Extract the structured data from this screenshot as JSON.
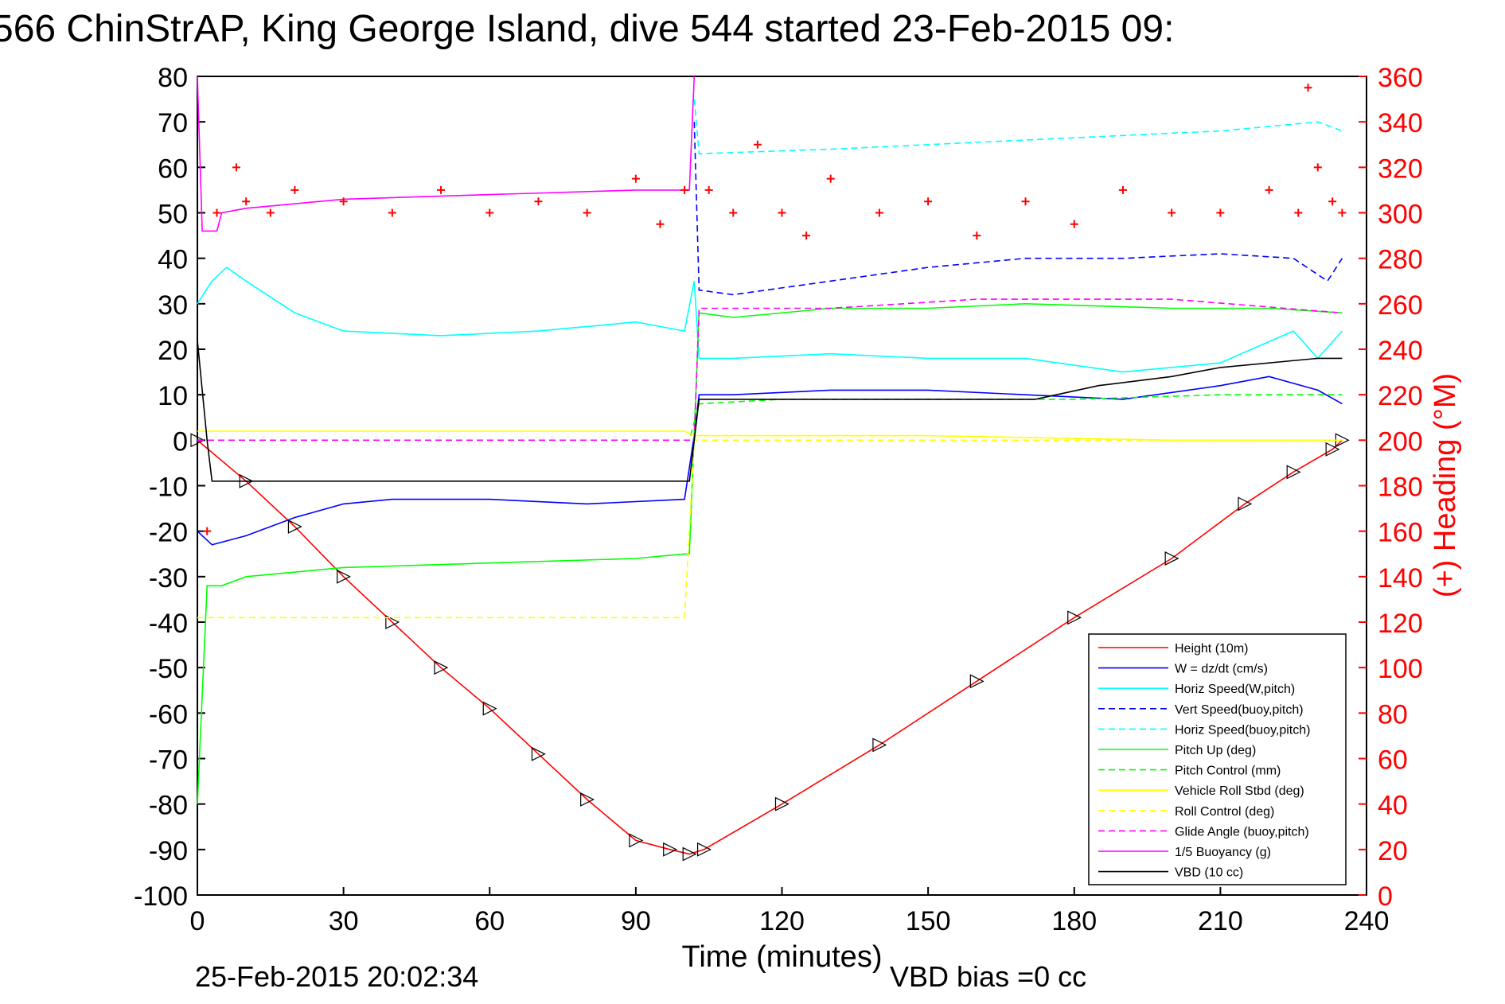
{
  "figure": {
    "title": "566 ChinStrAP, King George Island, dive 544 started 23-Feb-2015 09:",
    "footer_date": "25-Feb-2015 20:02:34",
    "footer_bias": "VBD bias =0 cc"
  },
  "chart_data": {
    "type": "line",
    "title": "566 ChinStrAP, King George Island, dive 544 started 23-Feb-2015 09:",
    "xlabel": "Time (minutes)",
    "ylabel": "",
    "y2label": "(+) Heading (°M)",
    "xlim": [
      0,
      240
    ],
    "ylim": [
      -100,
      80
    ],
    "y2lim": [
      0,
      360
    ],
    "xticks": [
      0,
      30,
      60,
      90,
      120,
      150,
      180,
      210,
      240
    ],
    "yticks": [
      -100,
      -90,
      -80,
      -70,
      -60,
      -50,
      -40,
      -30,
      -20,
      -10,
      0,
      10,
      20,
      30,
      40,
      50,
      60,
      70,
      80
    ],
    "y2ticks": [
      0,
      20,
      40,
      60,
      80,
      100,
      120,
      140,
      160,
      180,
      200,
      220,
      240,
      260,
      280,
      300,
      320,
      340,
      360
    ],
    "grid": false,
    "legend_position": "bottom-right",
    "series": [
      {
        "name": "Height (10m)",
        "color": "#ff0000",
        "style": "solid",
        "markers": "triangles",
        "x": [
          0,
          10,
          20,
          30,
          40,
          50,
          60,
          70,
          80,
          90,
          97,
          101,
          104,
          120,
          140,
          160,
          180,
          200,
          215,
          225,
          233,
          235
        ],
        "y": [
          0,
          -9,
          -19,
          -30,
          -40,
          -50,
          -59,
          -69,
          -79,
          -88,
          -90,
          -91,
          -90,
          -80,
          -67,
          -53,
          -39,
          -26,
          -14,
          -7,
          -2,
          0
        ]
      },
      {
        "name": "W  = dz/dt (cm/s)",
        "color": "#0000ff",
        "style": "solid",
        "x": [
          0,
          3,
          10,
          20,
          30,
          40,
          60,
          80,
          100,
          102,
          103,
          110,
          130,
          150,
          170,
          190,
          210,
          220,
          230,
          235
        ],
        "y": [
          -20,
          -23,
          -21,
          -17,
          -14,
          -13,
          -13,
          -14,
          -13,
          1,
          10,
          10,
          11,
          11,
          10,
          9,
          12,
          14,
          11,
          8
        ]
      },
      {
        "name": "Horiz Speed(W,pitch)",
        "color": "#00ffff",
        "style": "solid",
        "x": [
          0,
          3,
          6,
          10,
          20,
          30,
          50,
          70,
          90,
          100,
          102,
          103,
          110,
          130,
          150,
          170,
          190,
          210,
          225,
          230,
          235
        ],
        "y": [
          30,
          35,
          38,
          35,
          28,
          24,
          23,
          24,
          26,
          24,
          35,
          18,
          18,
          19,
          18,
          18,
          15,
          17,
          24,
          18,
          24
        ]
      },
      {
        "name": "Vert Speed(buoy,pitch)",
        "color": "#0000ff",
        "style": "dashed",
        "x": [
          102,
          103,
          110,
          130,
          150,
          170,
          190,
          210,
          225,
          232,
          235
        ],
        "y": [
          70,
          33,
          32,
          35,
          38,
          40,
          40,
          41,
          40,
          35,
          40
        ]
      },
      {
        "name": "Horiz Speed(buoy,pitch)",
        "color": "#00ffff",
        "style": "dashed",
        "x": [
          102,
          103,
          130,
          150,
          170,
          190,
          210,
          230,
          235
        ],
        "y": [
          75,
          63,
          64,
          65,
          66,
          67,
          68,
          70,
          68
        ]
      },
      {
        "name": "Pitch Up (deg)",
        "color": "#00ff00",
        "style": "solid",
        "x": [
          0,
          2,
          5,
          10,
          30,
          60,
          90,
          100,
          101,
          103,
          110,
          130,
          150,
          170,
          200,
          220,
          235
        ],
        "y": [
          -80,
          -32,
          -32,
          -30,
          -28,
          -27,
          -26,
          -25,
          -25,
          28,
          27,
          29,
          29,
          30,
          29,
          29,
          28
        ]
      },
      {
        "name": "Pitch Control (mm)",
        "color": "#00ff00",
        "style": "dashed",
        "x": [
          0,
          101,
          103,
          120,
          150,
          180,
          210,
          235
        ],
        "y": [
          0,
          0,
          8,
          9,
          9,
          9,
          10,
          10
        ]
      },
      {
        "name": "Vehicle Roll Stbd (deg)",
        "color": "#ffff00",
        "style": "solid",
        "x": [
          0,
          20,
          60,
          100,
          102,
          150,
          200,
          235
        ],
        "y": [
          2,
          2,
          2,
          2,
          1,
          1,
          0,
          0
        ]
      },
      {
        "name": "Roll Control (deg)",
        "color": "#ffff00",
        "style": "dashed",
        "x": [
          0,
          100,
          102,
          235
        ],
        "y": [
          -39,
          -39,
          0,
          0
        ]
      },
      {
        "name": "Glide Angle (buoy,pitch)",
        "color": "#ff00ff",
        "style": "dashed",
        "x": [
          0,
          101,
          102,
          103,
          130,
          160,
          200,
          235
        ],
        "y": [
          0,
          0,
          0,
          29,
          29,
          31,
          31,
          28
        ]
      },
      {
        "name": "1/5 Buoyancy (g)",
        "color": "#ff00ff",
        "style": "solid",
        "x": [
          0,
          1,
          4,
          5,
          10,
          30,
          60,
          90,
          101,
          102
        ],
        "y": [
          80,
          46,
          46,
          50,
          51,
          53,
          54,
          55,
          55,
          80
        ]
      },
      {
        "name": "VBD (10 cc)",
        "color": "#000000",
        "style": "solid",
        "x": [
          0,
          2,
          3,
          100,
          101,
          103,
          120,
          172,
          185,
          200,
          210,
          230,
          235
        ],
        "y": [
          22,
          0,
          -9,
          -9,
          -9,
          9,
          9,
          9,
          12,
          14,
          16,
          18,
          18
        ]
      },
      {
        "name": "Heading",
        "color": "#ff0000",
        "style": "markers",
        "axis": "right",
        "x": [
          2,
          4,
          8,
          10,
          15,
          20,
          30,
          40,
          50,
          60,
          70,
          80,
          90,
          95,
          100,
          105,
          110,
          115,
          120,
          125,
          130,
          140,
          150,
          160,
          170,
          180,
          190,
          200,
          210,
          220,
          226,
          228,
          230,
          233,
          235
        ],
        "y": [
          160,
          300,
          320,
          305,
          300,
          310,
          305,
          300,
          310,
          300,
          305,
          300,
          315,
          295,
          310,
          310,
          300,
          330,
          300,
          290,
          315,
          300,
          305,
          290,
          305,
          295,
          310,
          300,
          300,
          310,
          300,
          355,
          320,
          305,
          300
        ]
      }
    ]
  }
}
